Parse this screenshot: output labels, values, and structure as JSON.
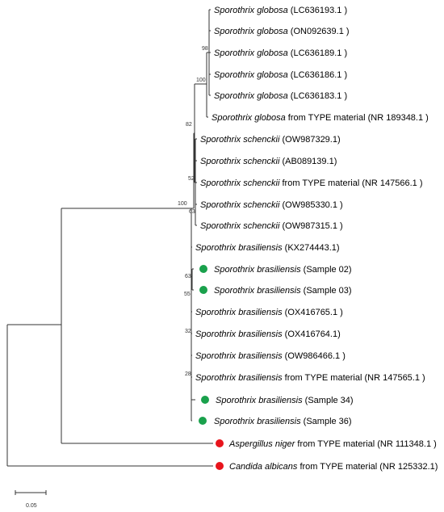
{
  "tree": {
    "taxa": [
      {
        "id": "t1",
        "name": "Sporothrix globosa",
        "suffix": " (LC636193.1 )",
        "marker": "none"
      },
      {
        "id": "t2",
        "name": "Sporothrix globosa",
        "suffix": " (ON092639.1 )",
        "marker": "none"
      },
      {
        "id": "t3",
        "name": "Sporothrix globosa",
        "suffix": " (LC636189.1 )",
        "marker": "none"
      },
      {
        "id": "t4",
        "name": "Sporothrix globosa",
        "suffix": " (LC636186.1 )",
        "marker": "none"
      },
      {
        "id": "t5",
        "name": "Sporothrix globosa",
        "suffix": " (LC636183.1 )",
        "marker": "none"
      },
      {
        "id": "t6",
        "name": "Sporothrix globosa",
        "suffix": " from TYPE material (NR 189348.1 )",
        "marker": "none"
      },
      {
        "id": "t7",
        "name": "Sporothrix schenckii",
        "suffix": " (OW987329.1)",
        "marker": "none"
      },
      {
        "id": "t8",
        "name": "Sporothrix schenckii",
        "suffix": " (AB089139.1)",
        "marker": "none"
      },
      {
        "id": "t9",
        "name": "Sporothrix schenckii",
        "suffix": " from TYPE material (NR 147566.1 )",
        "marker": "none"
      },
      {
        "id": "t10",
        "name": "Sporothrix schenckii",
        "suffix": " (OW985330.1 )",
        "marker": "none"
      },
      {
        "id": "t11",
        "name": "Sporothrix schenckii",
        "suffix": " (OW987315.1 )",
        "marker": "none"
      },
      {
        "id": "t12",
        "name": "Sporothrix brasiliensis",
        "suffix": " (KX274443.1)",
        "marker": "none"
      },
      {
        "id": "t13",
        "name": "Sporothrix brasiliensis",
        "suffix": " (Sample 02)",
        "marker": "green"
      },
      {
        "id": "t14",
        "name": "Sporothrix brasiliensis",
        "suffix": " (Sample 03)",
        "marker": "green"
      },
      {
        "id": "t15",
        "name": "Sporothrix brasiliensis",
        "suffix": " (OX416765.1 )",
        "marker": "none"
      },
      {
        "id": "t16",
        "name": "Sporothrix brasiliensis",
        "suffix": " (OX416764.1)",
        "marker": "none"
      },
      {
        "id": "t17",
        "name": "Sporothrix brasiliensis",
        "suffix": " (OW986466.1 )",
        "marker": "none"
      },
      {
        "id": "t18",
        "name": "Sporothrix brasiliensis",
        "suffix": " from TYPE material (NR 147565.1 )",
        "marker": "none"
      },
      {
        "id": "t19",
        "name": "Sporothrix brasiliensis",
        "suffix": " (Sample 34)",
        "marker": "green"
      },
      {
        "id": "t20",
        "name": "Sporothrix brasiliensis",
        "suffix": " (Sample 36)",
        "marker": "green"
      },
      {
        "id": "t21",
        "name": "Aspergillus niger",
        "suffix": " from TYPE material (NR 111348.1 )",
        "marker": "red"
      },
      {
        "id": "t22",
        "name": "Candida albicans",
        "suffix": " from TYPE material (NR 125332.1)",
        "marker": "red"
      }
    ],
    "bootstrap": [
      {
        "id": "b98",
        "value": "98"
      },
      {
        "id": "b100a",
        "value": "100"
      },
      {
        "id": "b82",
        "value": "82"
      },
      {
        "id": "b52",
        "value": "52"
      },
      {
        "id": "b63a",
        "value": "63"
      },
      {
        "id": "b100b",
        "value": "100"
      },
      {
        "id": "b63b",
        "value": "63"
      },
      {
        "id": "b55",
        "value": "55"
      },
      {
        "id": "b32",
        "value": "32"
      },
      {
        "id": "b28",
        "value": "28"
      }
    ],
    "scale_bar": {
      "label": "0.05"
    },
    "colors": {
      "green": "#1aa14c",
      "red": "#e8141c",
      "line": "#333333"
    }
  }
}
